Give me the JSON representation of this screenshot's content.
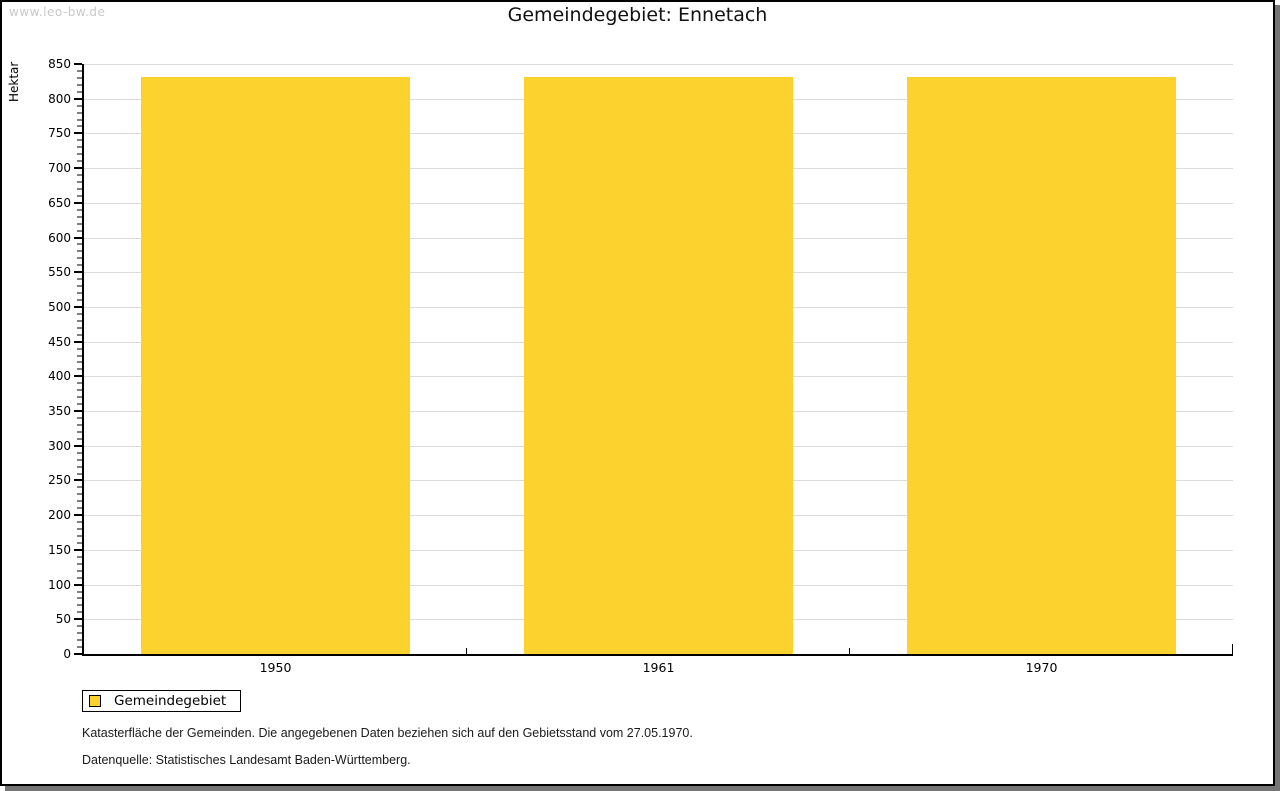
{
  "watermark": "www.leo-bw.de",
  "chart_data": {
    "type": "bar",
    "title": "Gemeindegebiet: Ennetach",
    "xlabel": "",
    "ylabel": "Hektar",
    "categories": [
      "1950",
      "1961",
      "1970"
    ],
    "series": [
      {
        "name": "Gemeindegebiet",
        "values": [
          832,
          832,
          832
        ]
      }
    ],
    "ylim": [
      0,
      850
    ],
    "ytick_major": 50,
    "ytick_minor": 10,
    "grid": true,
    "legend_position": "bottom-left",
    "bar_color": "#FCD32E"
  },
  "legend": {
    "label": "Gemeindegebiet",
    "swatch_color": "#FCD32E"
  },
  "footnotes": {
    "line1": "Katasterfläche der Gemeinden. Die angegebenen Daten beziehen sich auf den Gebietsstand vom 27.05.1970.",
    "line2": "Datenquelle: Statistisches Landesamt Baden-Württemberg."
  },
  "colors": {
    "bar": "#FCD32E",
    "gridline": "#DCDCDC",
    "axis": "#000000",
    "frame_border": "#000000",
    "frame_shadow": "#757575",
    "watermark": "#C9C9C9",
    "background": "#FFFFFF"
  }
}
